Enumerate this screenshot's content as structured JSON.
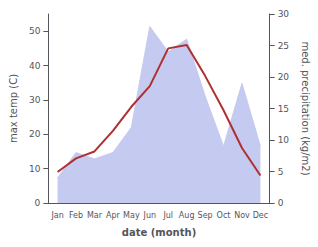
{
  "chart_data": {
    "type": "line",
    "categories": [
      "Jan",
      "Feb",
      "Mar",
      "Apr",
      "May",
      "Jun",
      "Jul",
      "Aug",
      "Sep",
      "Oct",
      "Nov",
      "Dec"
    ],
    "xlabel": "date (month)",
    "ylabel": "max temp (C)",
    "y2label": "med. precipitation (kg/m2)",
    "series": [
      {
        "type": "area",
        "axis": "y2",
        "color": "#c5caf0",
        "values": [
          4,
          8,
          7,
          8,
          12,
          28,
          24,
          26,
          17,
          9,
          19,
          9
        ]
      },
      {
        "type": "line",
        "color": "#b03030",
        "values": [
          9,
          13,
          15,
          21,
          28,
          34,
          45,
          46,
          37,
          27,
          16,
          8
        ]
      }
    ],
    "ylim": [
      0,
      55
    ],
    "yticks": [
      0,
      10,
      20,
      30,
      40,
      50
    ],
    "y2lim": [
      0,
      30
    ],
    "y2ticks": [
      0,
      5,
      10,
      15,
      20,
      25,
      30
    ],
    "grid": false
  }
}
